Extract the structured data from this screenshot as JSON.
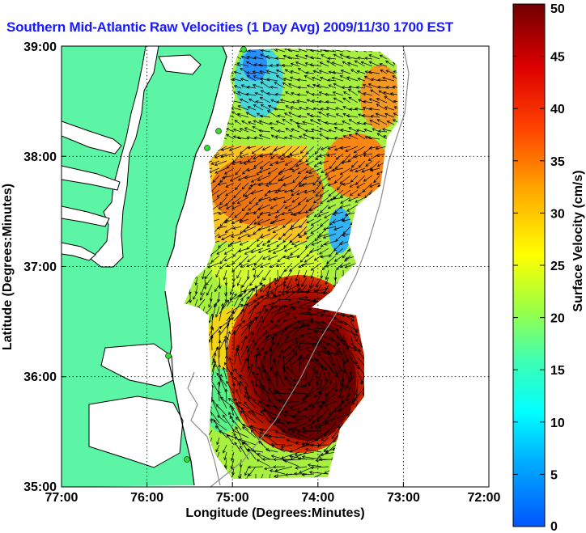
{
  "title": "Southern Mid-Atlantic Raw Velocities (1 Day Avg) 2009/11/30 1700 EST",
  "axes": {
    "xlabel": "Longitude (Degrees:Minutes)",
    "ylabel": "Latitude (Degrees:Minutes)",
    "xticks": [
      "77:00",
      "76:00",
      "75:00",
      "74:00",
      "73:00",
      "72:00"
    ],
    "yticks": [
      "39:00",
      "38:00",
      "37:00",
      "36:00",
      "35:00"
    ]
  },
  "colorbar": {
    "label": "Surface Velocity (cm/s)",
    "ticks": [
      "0",
      "5",
      "10",
      "15",
      "20",
      "25",
      "30",
      "35",
      "40",
      "45",
      "50"
    ],
    "range": [
      0,
      50
    ]
  },
  "colors": {
    "land": "#5cf5a6",
    "coast": "#000000",
    "grid": "#000000",
    "bathymetry": "#8c8c8c",
    "station": "#33dd33",
    "title": "#1a1aff"
  },
  "map_extent": {
    "lon": [
      -77,
      -72
    ],
    "lat": [
      35,
      39
    ]
  }
}
